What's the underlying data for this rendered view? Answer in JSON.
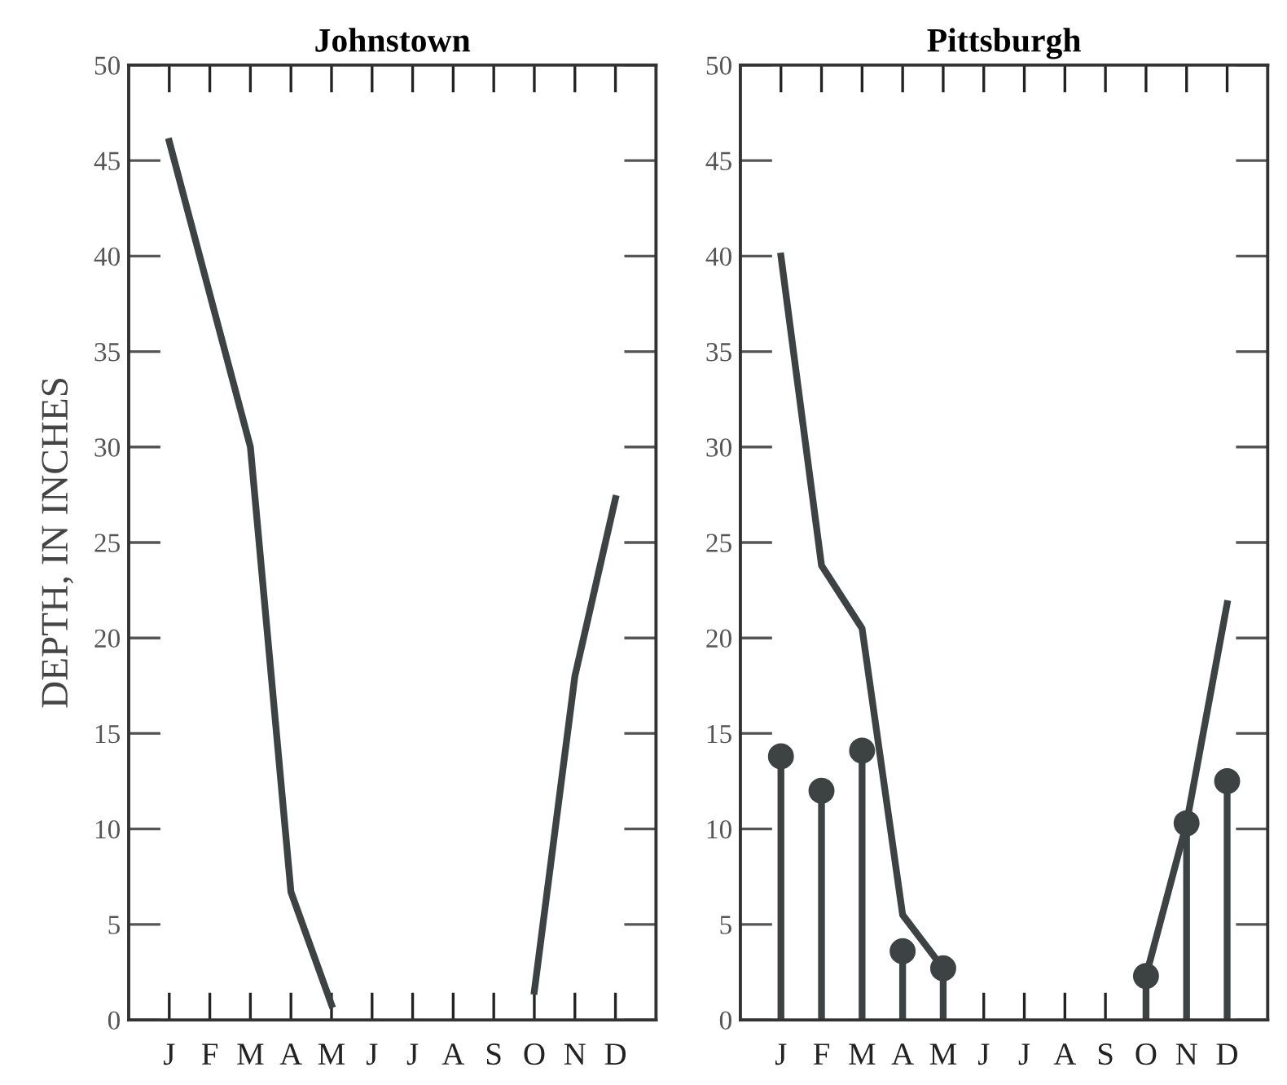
{
  "chart_data": [
    {
      "type": "line",
      "title": "Johnstown",
      "ylabel": "DEPTH, IN INCHES",
      "categories": [
        "J",
        "F",
        "M",
        "A",
        "M",
        "J",
        "J",
        "A",
        "S",
        "O",
        "N",
        "D"
      ],
      "ylim": [
        0,
        50
      ],
      "yticks": [
        0,
        5,
        10,
        15,
        20,
        25,
        30,
        35,
        40,
        45,
        50
      ],
      "grid": false,
      "legend": false,
      "series": [
        {
          "color": "#3d4242",
          "values": [
            46,
            38,
            30,
            6.7,
            0.8,
            null,
            null,
            null,
            null,
            1.5,
            18,
            27.3
          ]
        }
      ]
    },
    {
      "type": "line",
      "title": "Pittsburgh",
      "categories": [
        "J",
        "F",
        "M",
        "A",
        "M",
        "J",
        "J",
        "A",
        "S",
        "O",
        "N",
        "D"
      ],
      "ylim": [
        0,
        50
      ],
      "yticks": [
        0,
        5,
        10,
        15,
        20,
        25,
        30,
        35,
        40,
        45,
        50
      ],
      "grid": false,
      "legend": false,
      "series": [
        {
          "color": "#3d4242",
          "values": [
            40,
            23.8,
            20.5,
            5.5,
            2.7,
            null,
            null,
            null,
            null,
            2.3,
            10.3,
            21.8
          ]
        },
        {
          "type": "lollipop",
          "marker": "circle",
          "color": "#3d4242",
          "values": [
            13.8,
            12,
            14.1,
            3.6,
            2.7,
            null,
            null,
            null,
            null,
            2.3,
            10.3,
            12.5
          ]
        }
      ]
    }
  ]
}
